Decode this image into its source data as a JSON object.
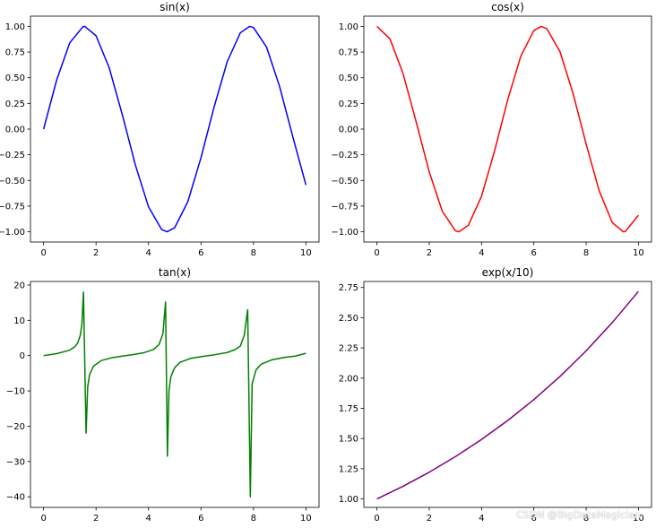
{
  "figure": {
    "watermark": "CSDN @BigDataMagician"
  },
  "chart_data": [
    {
      "type": "line",
      "title": "sin(x)",
      "xlabel": "",
      "ylabel": "",
      "xlim": [
        -0.5,
        10.5
      ],
      "ylim": [
        -1.1,
        1.1
      ],
      "xticks": [
        0,
        2,
        4,
        6,
        8,
        10
      ],
      "xtick_labels": [
        "0",
        "2",
        "4",
        "6",
        "8",
        "10"
      ],
      "yticks": [
        -1.0,
        -0.75,
        -0.5,
        -0.25,
        0.0,
        0.25,
        0.5,
        0.75,
        1.0
      ],
      "ytick_labels": [
        "−1.00",
        "−0.75",
        "−0.50",
        "−0.25",
        "0.00",
        "0.25",
        "0.50",
        "0.75",
        "1.00"
      ],
      "grid": false,
      "series": [
        {
          "color": "#0000ff",
          "x": [
            0,
            0.5,
            1,
            1.5,
            1.57,
            2,
            2.5,
            3,
            3.5,
            4,
            4.5,
            4.71,
            5,
            5.5,
            6,
            6.5,
            7,
            7.5,
            7.85,
            8,
            8.5,
            9,
            9.5,
            10
          ],
          "y": [
            0,
            0.479,
            0.841,
            0.997,
            1.0,
            0.909,
            0.598,
            0.141,
            -0.351,
            -0.757,
            -0.978,
            -1.0,
            -0.959,
            -0.706,
            -0.279,
            0.215,
            0.657,
            0.938,
            1.0,
            0.989,
            0.798,
            0.412,
            -0.075,
            -0.544
          ]
        }
      ]
    },
    {
      "type": "line",
      "title": "cos(x)",
      "xlabel": "",
      "ylabel": "",
      "xlim": [
        -0.5,
        10.5
      ],
      "ylim": [
        -1.1,
        1.1
      ],
      "xticks": [
        0,
        2,
        4,
        6,
        8,
        10
      ],
      "xtick_labels": [
        "0",
        "2",
        "4",
        "6",
        "8",
        "10"
      ],
      "yticks": [
        -1.0,
        -0.75,
        -0.5,
        -0.25,
        0.0,
        0.25,
        0.5,
        0.75,
        1.0
      ],
      "ytick_labels": [
        "−1.00",
        "−0.75",
        "−0.50",
        "−0.25",
        "0.00",
        "0.25",
        "0.50",
        "0.75",
        "1.00"
      ],
      "grid": false,
      "series": [
        {
          "color": "#ff0000",
          "x": [
            0,
            0.5,
            1,
            1.5,
            2,
            2.5,
            3,
            3.14,
            3.5,
            4,
            4.5,
            5,
            5.5,
            6,
            6.28,
            6.5,
            7,
            7.5,
            8,
            8.5,
            9,
            9.42,
            9.5,
            10
          ],
          "y": [
            1.0,
            0.878,
            0.54,
            0.071,
            -0.416,
            -0.801,
            -0.99,
            -1.0,
            -0.936,
            -0.654,
            -0.211,
            0.284,
            0.709,
            0.96,
            1.0,
            0.977,
            0.754,
            0.347,
            -0.146,
            -0.602,
            -0.911,
            -1.0,
            -0.997,
            -0.839
          ]
        }
      ]
    },
    {
      "type": "line",
      "title": "tan(x)",
      "xlabel": "",
      "ylabel": "",
      "xlim": [
        -0.5,
        10.5
      ],
      "ylim": [
        -43,
        21
      ],
      "xticks": [
        0,
        2,
        4,
        6,
        8,
        10
      ],
      "xtick_labels": [
        "0",
        "2",
        "4",
        "6",
        "8",
        "10"
      ],
      "yticks": [
        -40,
        -30,
        -20,
        -10,
        0,
        10,
        20
      ],
      "ytick_labels": [
        "−40",
        "−30",
        "−20",
        "−10",
        "0",
        "10",
        "20"
      ],
      "grid": false,
      "series": [
        {
          "color": "#008000",
          "x": [
            0,
            0.5,
            1.0,
            1.2,
            1.3,
            1.4,
            1.46,
            1.52,
            1.62,
            1.68,
            1.75,
            1.9,
            2.2,
            2.6,
            3.0,
            3.4,
            3.8,
            4.2,
            4.4,
            4.55,
            4.65,
            4.72,
            4.78,
            4.85,
            5.0,
            5.2,
            5.6,
            6.0,
            6.5,
            7.0,
            7.3,
            7.5,
            7.65,
            7.78,
            7.88,
            7.95,
            8.1,
            8.3,
            8.7,
            9.2,
            9.6,
            10.0
          ],
          "y": [
            0,
            0.55,
            1.56,
            2.57,
            3.6,
            5.8,
            8.8,
            18.0,
            -22.0,
            -9.0,
            -5.5,
            -3.0,
            -1.4,
            -0.6,
            -0.14,
            0.26,
            0.77,
            1.78,
            3.1,
            6.2,
            15.2,
            -28.5,
            -10.0,
            -6.0,
            -3.4,
            -1.9,
            -0.8,
            -0.29,
            0.22,
            0.87,
            1.7,
            2.7,
            5.8,
            13.0,
            -40.0,
            -8.0,
            -4.0,
            -2.4,
            -1.2,
            -0.48,
            -0.14,
            0.65
          ]
        }
      ]
    },
    {
      "type": "line",
      "title": "exp(x/10)",
      "xlabel": "",
      "ylabel": "",
      "xlim": [
        -0.5,
        10.5
      ],
      "ylim": [
        0.93,
        2.8
      ],
      "xticks": [
        0,
        2,
        4,
        6,
        8,
        10
      ],
      "xtick_labels": [
        "0",
        "2",
        "4",
        "6",
        "8",
        "10"
      ],
      "yticks": [
        1.0,
        1.25,
        1.5,
        1.75,
        2.0,
        2.25,
        2.5,
        2.75
      ],
      "ytick_labels": [
        "1.00",
        "1.25",
        "1.50",
        "1.75",
        "2.00",
        "2.25",
        "2.50",
        "2.75"
      ],
      "grid": false,
      "series": [
        {
          "color": "#800080",
          "x": [
            0,
            1,
            2,
            3,
            4,
            5,
            6,
            7,
            8,
            9,
            10
          ],
          "y": [
            1.0,
            1.105,
            1.221,
            1.35,
            1.492,
            1.649,
            1.822,
            2.014,
            2.226,
            2.46,
            2.718
          ]
        }
      ]
    }
  ]
}
